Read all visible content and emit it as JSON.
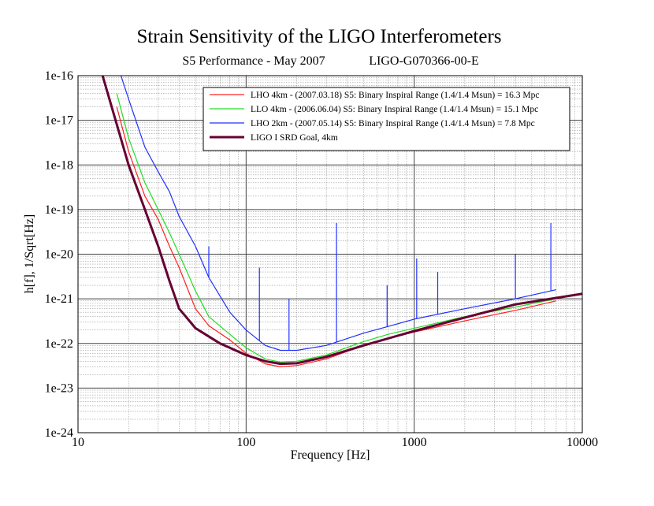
{
  "chart_data": {
    "type": "line",
    "title": "Strain Sensitivity of the LIGO Interferometers",
    "subtitle": "S5 Performance - May 2007",
    "document_id": "LIGO-G070366-00-E",
    "xlabel": "Frequency [Hz]",
    "ylabel": "h[f], 1/Sqrt[Hz]",
    "x_scale": "log",
    "y_scale": "log",
    "xlim": [
      10,
      10000
    ],
    "ylim": [
      1e-24,
      1e-16
    ],
    "x_ticks": [
      "10",
      "100",
      "1000",
      "10000"
    ],
    "y_ticks": [
      "1e-16",
      "1e-17",
      "1e-18",
      "1e-19",
      "1e-20",
      "1e-21",
      "1e-22",
      "1e-23",
      "1e-24"
    ],
    "grid": true,
    "legend_position": "top-right",
    "series": [
      {
        "name": "LHO 4km - (2007.03.18) S5: Binary Inspiral Range (1.4/1.4 Msun) = 16.3 Mpc",
        "color": "#ff2020",
        "x": [
          17,
          20,
          25,
          30,
          35,
          40,
          50,
          60,
          80,
          100,
          130,
          160,
          200,
          300,
          500,
          700,
          1000,
          2000,
          4000,
          7000
        ],
        "y": [
          2e-17,
          2e-18,
          2e-19,
          6e-20,
          1.5e-20,
          5e-21,
          6e-22,
          2.5e-22,
          1.2e-22,
          6e-23,
          3.5e-23,
          3e-23,
          3.2e-23,
          4.5e-23,
          9e-23,
          1.3e-22,
          1.8e-22,
          3.2e-22,
          5.5e-22,
          9e-22
        ]
      },
      {
        "name": "LLO 4km - (2006.06.04) S5: Binary Inspiral Range (1.4/1.4 Msun) = 15.1 Mpc",
        "color": "#22dd22",
        "x": [
          17,
          20,
          25,
          30,
          35,
          40,
          50,
          60,
          80,
          100,
          130,
          160,
          200,
          300,
          500,
          700,
          1000,
          2000,
          4000,
          7000
        ],
        "y": [
          4e-17,
          4e-18,
          4e-19,
          1e-19,
          3e-20,
          1e-20,
          1.5e-21,
          4e-22,
          1.6e-22,
          8e-23,
          4.5e-23,
          3.8e-23,
          4e-23,
          5.5e-23,
          1.1e-22,
          1.6e-22,
          2.2e-22,
          4e-22,
          6.5e-22,
          1e-21
        ]
      },
      {
        "name": "LHO 2km - (2007.05.14) S5: Binary Inspiral Range (1.4/1.4 Msun) = 7.8 Mpc",
        "color": "#2030ff",
        "x": [
          18,
          20,
          25,
          30,
          35,
          40,
          50,
          60,
          80,
          100,
          130,
          160,
          200,
          300,
          500,
          700,
          1000,
          2000,
          4000,
          7000
        ],
        "y": [
          1e-16,
          3e-17,
          2.5e-18,
          7e-19,
          2.5e-19,
          7e-20,
          1.5e-20,
          3e-21,
          5e-22,
          2e-22,
          9e-23,
          7e-23,
          7e-23,
          9e-23,
          1.7e-22,
          2.4e-22,
          3.5e-22,
          6e-22,
          1e-21,
          1.6e-21
        ]
      },
      {
        "name": "LIGO I SRD Goal, 4km",
        "color": "#660033",
        "x": [
          14,
          20,
          25,
          30,
          35,
          40,
          50,
          70,
          100,
          130,
          160,
          200,
          300,
          500,
          1000,
          2000,
          4000,
          10000
        ],
        "y": [
          1e-16,
          1e-18,
          1e-19,
          1.5e-20,
          2.5e-21,
          6e-22,
          2.2e-22,
          1e-22,
          5.5e-23,
          4e-23,
          3.5e-23,
          3.6e-23,
          5e-23,
          9e-23,
          1.9e-22,
          3.8e-22,
          7.5e-22,
          1.3e-21
        ]
      }
    ],
    "lines_spikes": [
      {
        "x": 60,
        "y": 1.5e-20
      },
      {
        "x": 120,
        "y": 5e-21
      },
      {
        "x": 180,
        "y": 1e-21
      },
      {
        "x": 345,
        "y": 5e-20
      },
      {
        "x": 690,
        "y": 2e-21
      },
      {
        "x": 1035,
        "y": 8e-21
      },
      {
        "x": 1380,
        "y": 4e-21
      },
      {
        "x": 4000,
        "y": 1e-20
      },
      {
        "x": 6500,
        "y": 5e-20
      }
    ]
  }
}
